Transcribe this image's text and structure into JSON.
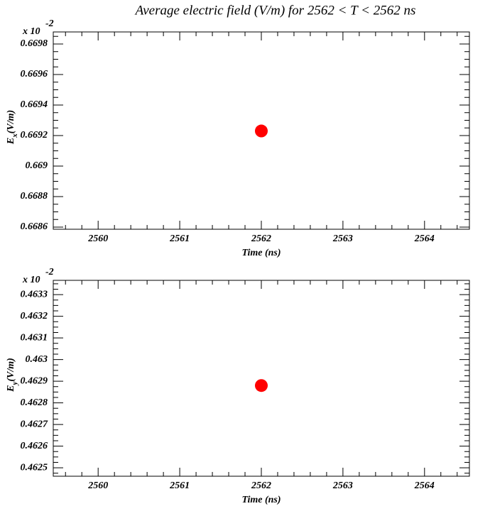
{
  "title": "Average electric field (V/m) for 2562 < T < 2562 ns",
  "chart_data": [
    {
      "type": "scatter",
      "x": [
        2562
      ],
      "values": [
        0.66923
      ],
      "color": "#ff0000",
      "xlim": [
        2559.45,
        2564.55
      ],
      "xticks": [
        2560,
        2561,
        2562,
        2563,
        2564
      ],
      "ylim": [
        0.668586,
        0.669879
      ],
      "yticks": [
        0.6686,
        0.6688,
        0.669,
        0.6692,
        0.6694,
        0.6696,
        0.6698
      ],
      "xlabel": "Time (ns)",
      "ylabel": {
        "main": "E",
        "sub": "x",
        "unit": "(V/m)"
      },
      "multiplier": "x 10",
      "exponent": "-2"
    },
    {
      "type": "scatter",
      "x": [
        2562
      ],
      "values": [
        0.46288
      ],
      "color": "#ff0000",
      "xlim": [
        2559.45,
        2564.55
      ],
      "xticks": [
        2560,
        2561,
        2562,
        2563,
        2564
      ],
      "ylim": [
        0.462461,
        0.463366
      ],
      "yticks": [
        0.4625,
        0.4626,
        0.4627,
        0.4628,
        0.4629,
        0.463,
        0.4631,
        0.4632,
        0.4633
      ],
      "xlabel": "Time (ns)",
      "ylabel": {
        "main": "E",
        "sub": "y",
        "unit": "(V/m)"
      },
      "multiplier": "x 10",
      "exponent": "-2"
    }
  ]
}
